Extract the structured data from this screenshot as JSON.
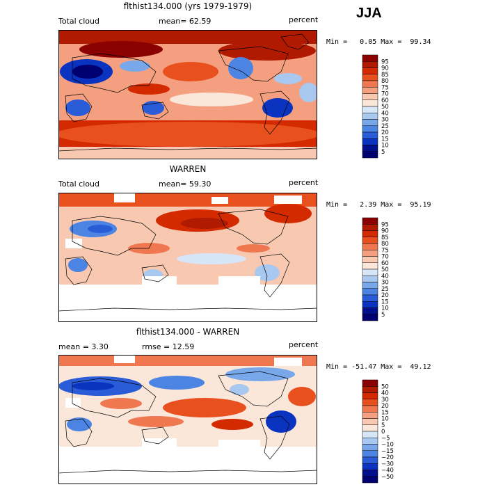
{
  "season_label": "JJA",
  "panels": [
    {
      "title": "flthist134.000 (yrs 1979-1979)",
      "left_label": "Total cloud",
      "center_label": "mean=  62.59",
      "right_label": "percent",
      "range_text": "Min =   0.05 Max =  99.34"
    },
    {
      "title": "WARREN",
      "left_label": "Total cloud",
      "center_label": "mean=  59.30",
      "right_label": "percent",
      "range_text": "Min =   2.39 Max =  95.19"
    },
    {
      "title": "flthist134.000 - WARREN",
      "left_label": "mean =   3.30",
      "center_label": "rmse =  12.59",
      "right_label": "percent",
      "range_text": "Min = -51.47 Max =  49.12"
    }
  ],
  "chart_data": [
    {
      "type": "heatmap",
      "title": "flthist134.000 (yrs 1979-1979)",
      "variable": "Total cloud",
      "units": "percent",
      "mean": 62.59,
      "min": 0.05,
      "max": 99.34,
      "colorbar": {
        "levels": [
          "95",
          "90",
          "85",
          "80",
          "75",
          "70",
          "60",
          "50",
          "40",
          "30",
          "25",
          "20",
          "15",
          "10",
          "5"
        ],
        "colors": [
          "#8b0000",
          "#b01a00",
          "#d42a00",
          "#e8501e",
          "#f07850",
          "#f4a080",
          "#f8c8b0",
          "#fbe6da",
          "#d6e6f7",
          "#a8c8f0",
          "#78a8ea",
          "#4c84e4",
          "#2a5cd8",
          "#0a34c0",
          "#00108c",
          "#000070"
        ]
      }
    },
    {
      "type": "heatmap",
      "title": "WARREN",
      "variable": "Total cloud",
      "units": "percent",
      "mean": 59.3,
      "min": 2.39,
      "max": 95.19,
      "colorbar": {
        "levels": [
          "95",
          "90",
          "85",
          "80",
          "75",
          "70",
          "60",
          "50",
          "40",
          "30",
          "25",
          "20",
          "15",
          "10",
          "5"
        ],
        "colors": [
          "#8b0000",
          "#b01a00",
          "#d42a00",
          "#e8501e",
          "#f07850",
          "#f4a080",
          "#f8c8b0",
          "#fbe6da",
          "#d6e6f7",
          "#a8c8f0",
          "#78a8ea",
          "#4c84e4",
          "#2a5cd8",
          "#0a34c0",
          "#00108c",
          "#000070"
        ]
      }
    },
    {
      "type": "heatmap",
      "title": "flthist134.000 - WARREN",
      "units": "percent",
      "mean": 3.3,
      "rmse": 12.59,
      "min": -51.47,
      "max": 49.12,
      "colorbar": {
        "levels": [
          "50",
          "40",
          "30",
          "20",
          "15",
          "10",
          "5",
          "0",
          "−5",
          "−10",
          "−15",
          "−20",
          "−30",
          "−40",
          "−50"
        ],
        "colors": [
          "#8b0000",
          "#b01a00",
          "#d42a00",
          "#e8501e",
          "#f07850",
          "#f4a080",
          "#f8c8b0",
          "#fbe6da",
          "#d6e6f7",
          "#a8c8f0",
          "#78a8ea",
          "#4c84e4",
          "#2a5cd8",
          "#0a34c0",
          "#00108c",
          "#000070"
        ]
      }
    }
  ]
}
